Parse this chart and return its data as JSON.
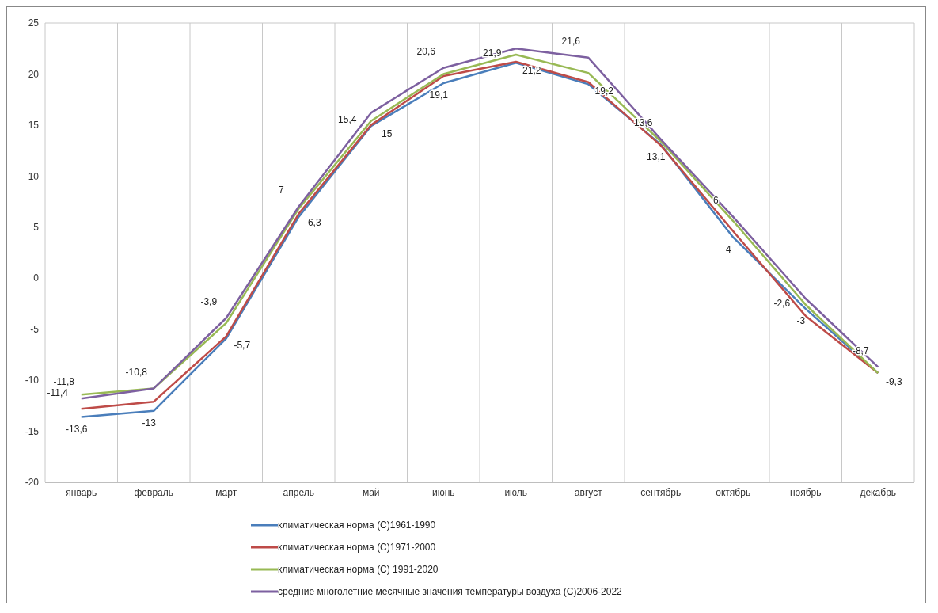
{
  "chart_data": {
    "type": "line",
    "categories": [
      "январь",
      "февраль",
      "март",
      "апрель",
      "май",
      "июнь",
      "июль",
      "август",
      "сентябрь",
      "октябрь",
      "ноябрь",
      "декабрь"
    ],
    "series": [
      {
        "name": "климатическая норма (С)1961-1990",
        "color": "#4a7ebb",
        "values": [
          -13.6,
          -13,
          -5.9,
          6.0,
          14.9,
          19.1,
          21.1,
          19.0,
          13.1,
          4,
          -3,
          -9.3
        ],
        "value_labels": [
          "-13,6",
          "-13",
          null,
          null,
          null,
          "19,1",
          null,
          null,
          "13,1",
          "4",
          "-3",
          null
        ]
      },
      {
        "name": "климатическая норма (С)1971-2000",
        "color": "#be4b48",
        "values": [
          -12.8,
          -12.1,
          -5.7,
          6.3,
          15,
          19.8,
          21.2,
          19.2,
          13.0,
          4.6,
          -3.7,
          -9.3
        ],
        "value_labels": [
          null,
          null,
          "-5,7",
          "6,3",
          "15",
          null,
          "21,2",
          "19,2",
          null,
          null,
          null,
          "-9,3"
        ]
      },
      {
        "name": "климатическая норма (С) 1991-2020",
        "color": "#98b954",
        "values": [
          -11.4,
          -10.8,
          -4.4,
          6.8,
          15.4,
          20.0,
          21.9,
          20.1,
          13.4,
          5.6,
          -2.6,
          -9.3
        ],
        "value_labels": [
          "-11,4",
          null,
          null,
          null,
          "15,4",
          null,
          "21,9",
          null,
          null,
          null,
          "-2,6",
          null
        ]
      },
      {
        "name": "средние многолетние месячные значения температуры воздуха (С)2006-2022",
        "color": "#7d60a0",
        "values": [
          -11.8,
          -10.8,
          -3.9,
          7,
          16.2,
          20.6,
          22.5,
          21.6,
          13.6,
          6,
          -2.0,
          -8.7
        ],
        "value_labels": [
          "-11,8",
          "-10,8",
          "-3,9",
          "7",
          null,
          "20,6",
          null,
          "21,6",
          "13,6",
          "6",
          null,
          "-8,7"
        ]
      }
    ],
    "ylim": [
      -20,
      25
    ],
    "yticks": [
      -20,
      -15,
      -10,
      -5,
      0,
      5,
      10,
      15,
      20,
      25
    ],
    "grid": true,
    "legend": "bottom",
    "marker": "none",
    "line_style": "solid"
  }
}
